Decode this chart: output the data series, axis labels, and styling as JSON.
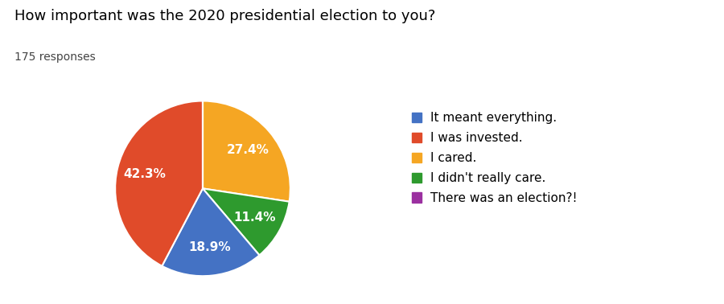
{
  "title": "How important was the 2020 presidential election to you?",
  "subtitle": "175 responses",
  "slices": [
    27.4,
    11.4,
    18.9,
    42.3,
    0.001
  ],
  "slice_labels": [
    "27.4%",
    "11.4%",
    "18.9%",
    "42.3%",
    ""
  ],
  "colors": [
    "#F5A623",
    "#2E9A2E",
    "#4472C4",
    "#E04B2A",
    "#9B30A0"
  ],
  "legend_labels": [
    "It meant everything.",
    "I was invested.",
    "I cared.",
    "I didn't really care.",
    "There was an election?!"
  ],
  "legend_colors": [
    "#4472C4",
    "#E04B2A",
    "#F5A623",
    "#2E9A2E",
    "#9B30A0"
  ],
  "title_fontsize": 13,
  "subtitle_fontsize": 10,
  "legend_fontsize": 11,
  "background_color": "#ffffff",
  "startangle": 90,
  "pct_color": "white",
  "pct_fontsize": 11
}
